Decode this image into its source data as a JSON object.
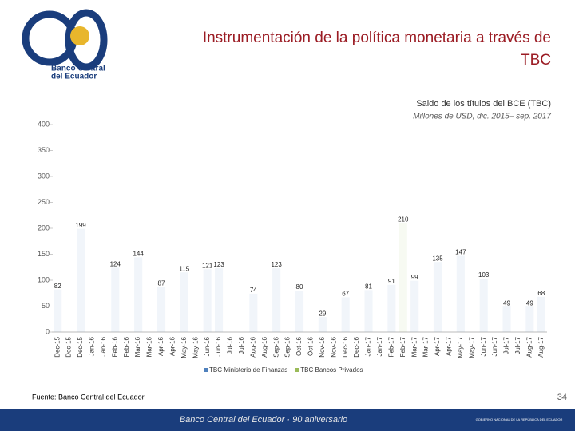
{
  "slide": {
    "title_line1": "Instrumentación de la política monetaria a través de",
    "title_line2": "TBC",
    "source": "Fuente: Banco Central del Ecuador",
    "page": "34",
    "footer": "Banco Central del Ecuador · 90 aniversario",
    "footer_right": "GOBIERNO NACIONAL DE LA REPÚBLICA DEL ECUADOR",
    "logo_line1": "Banco Central",
    "logo_line2": "del Ecuador"
  },
  "chart_data": {
    "type": "bar",
    "stacked": true,
    "title": "Saldo de los títulos del BCE (TBC)",
    "subtitle": "Millones de USD, dic. 2015– sep. 2017",
    "categories": [
      "Dec-15",
      "Dec-15",
      "Dec-15",
      "Jan-16",
      "Jan-16",
      "Feb-16",
      "Feb-16",
      "Mar-16",
      "Mar-16",
      "Apr-16",
      "Apr-16",
      "May-16",
      "May-16",
      "Jun-16",
      "Jun-16",
      "Jul-16",
      "Jul-16",
      "Aug-16",
      "Aug-16",
      "Sep-16",
      "Sep-16",
      "Oct-16",
      "Oct-16",
      "Nov-16",
      "Nov-16",
      "Dec-16",
      "Dec-16",
      "Jan-17",
      "Jan-17",
      "Feb-17",
      "Feb-17",
      "Mar-17",
      "Mar-17",
      "Apr-17",
      "Apr-17",
      "May-17",
      "May-17",
      "Jun-17",
      "Jun-17",
      "Jul-17",
      "Jul-17",
      "Aug-17",
      "Aug-17"
    ],
    "series": [
      {
        "name": "TBC Ministerio de Finanzas",
        "color": "#4f81bd",
        "values": [
          82,
          null,
          199,
          null,
          null,
          124,
          null,
          144,
          null,
          87,
          null,
          115,
          null,
          121,
          123,
          null,
          null,
          74,
          null,
          123,
          null,
          80,
          null,
          29,
          null,
          67,
          null,
          81,
          null,
          91,
          null,
          99,
          null,
          135,
          null,
          147,
          null,
          103,
          null,
          49,
          null,
          49,
          68
        ]
      },
      {
        "name": "TBC Bancos Privados",
        "color": "#9bbb59",
        "values": [
          null,
          null,
          null,
          null,
          null,
          null,
          null,
          null,
          null,
          null,
          null,
          null,
          null,
          null,
          null,
          null,
          null,
          null,
          null,
          null,
          null,
          null,
          null,
          null,
          null,
          null,
          null,
          null,
          null,
          null,
          210,
          null,
          null,
          null,
          null,
          null,
          null,
          null,
          null,
          null,
          null,
          null,
          null
        ]
      }
    ],
    "ylim": [
      0,
      400
    ],
    "yticks": [
      0,
      50,
      100,
      150,
      200,
      250,
      300,
      350,
      400
    ]
  }
}
